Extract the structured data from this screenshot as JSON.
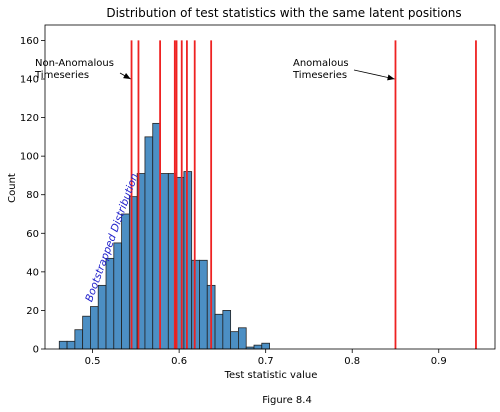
{
  "chart_data": {
    "type": "histogram",
    "title": "Distribution of test statistics with the same latent positions",
    "xlabel": "Test statistic value",
    "ylabel": "Count",
    "xlim": [
      0.445,
      0.965
    ],
    "ylim": [
      0,
      168
    ],
    "xticks": [
      0.5,
      0.6,
      0.7,
      0.8,
      0.9
    ],
    "yticks": [
      0,
      20,
      40,
      60,
      80,
      100,
      120,
      140,
      160
    ],
    "grid": false,
    "bar_color": "#4c8fc4",
    "bar_edge_color": "#222222",
    "line_color": "#ee2222",
    "bins": [
      {
        "x0": 0.4615,
        "x1": 0.4705,
        "count": 4
      },
      {
        "x0": 0.4705,
        "x1": 0.4795,
        "count": 4
      },
      {
        "x0": 0.4795,
        "x1": 0.4885,
        "count": 10
      },
      {
        "x0": 0.4885,
        "x1": 0.4975,
        "count": 17
      },
      {
        "x0": 0.4975,
        "x1": 0.5065,
        "count": 22
      },
      {
        "x0": 0.5065,
        "x1": 0.5155,
        "count": 33
      },
      {
        "x0": 0.5155,
        "x1": 0.5245,
        "count": 47
      },
      {
        "x0": 0.5245,
        "x1": 0.5335,
        "count": 55
      },
      {
        "x0": 0.5335,
        "x1": 0.5425,
        "count": 70
      },
      {
        "x0": 0.5425,
        "x1": 0.5515,
        "count": 79
      },
      {
        "x0": 0.5515,
        "x1": 0.5605,
        "count": 91
      },
      {
        "x0": 0.5605,
        "x1": 0.5695,
        "count": 110
      },
      {
        "x0": 0.5695,
        "x1": 0.5785,
        "count": 117
      },
      {
        "x0": 0.5785,
        "x1": 0.5875,
        "count": 91
      },
      {
        "x0": 0.5875,
        "x1": 0.5965,
        "count": 91
      },
      {
        "x0": 0.5965,
        "x1": 0.6055,
        "count": 89
      },
      {
        "x0": 0.6055,
        "x1": 0.6145,
        "count": 92
      },
      {
        "x0": 0.6145,
        "x1": 0.6235,
        "count": 46
      },
      {
        "x0": 0.6235,
        "x1": 0.6325,
        "count": 46
      },
      {
        "x0": 0.6325,
        "x1": 0.6415,
        "count": 33
      },
      {
        "x0": 0.6415,
        "x1": 0.6505,
        "count": 18
      },
      {
        "x0": 0.6505,
        "x1": 0.6595,
        "count": 20
      },
      {
        "x0": 0.6595,
        "x1": 0.6685,
        "count": 9
      },
      {
        "x0": 0.6685,
        "x1": 0.6775,
        "count": 11
      },
      {
        "x0": 0.6775,
        "x1": 0.6865,
        "count": 1
      },
      {
        "x0": 0.6865,
        "x1": 0.6955,
        "count": 2
      },
      {
        "x0": 0.6955,
        "x1": 0.7045,
        "count": 3
      }
    ],
    "vlines": [
      0.545,
      0.553,
      0.578,
      0.595,
      0.597,
      0.603,
      0.609,
      0.618,
      0.637,
      0.85,
      0.943
    ],
    "vline_top": 160,
    "annotations": [
      {
        "text": [
          "Non-Anomalous",
          "Timeseries"
        ],
        "arrow_to": {
          "x": 0.544,
          "y": 140
        }
      },
      {
        "text": [
          "Anomalous",
          "Timeseries"
        ],
        "arrow_to": {
          "x": 0.849,
          "y": 140
        }
      },
      {
        "text": [
          "Bootstrapped Distribution"
        ],
        "color": "#2222cc",
        "rotation": -70,
        "anchor": {
          "x": 0.499,
          "y": 20
        }
      }
    ],
    "caption": "Figure 8.4"
  }
}
